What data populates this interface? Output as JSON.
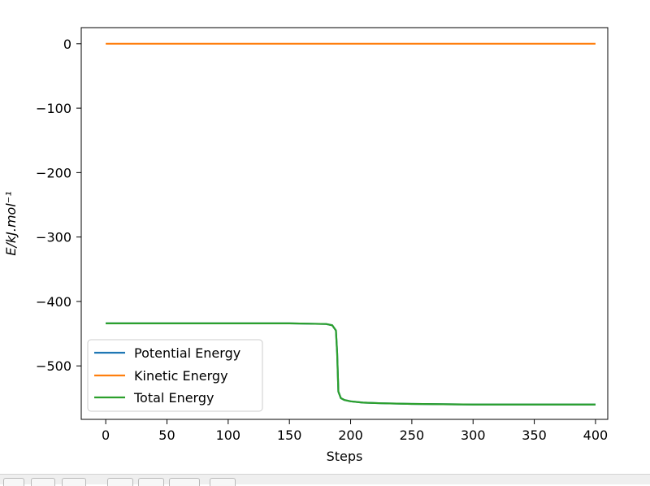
{
  "chart_data": {
    "type": "line",
    "title": "",
    "xlabel": "Steps",
    "ylabel": "E/kJ.mol⁻¹",
    "xlim": [
      -20,
      410
    ],
    "ylim": [
      -583,
      25
    ],
    "x_ticks": [
      0,
      50,
      100,
      150,
      200,
      250,
      300,
      350,
      400
    ],
    "y_ticks": [
      0,
      -100,
      -200,
      -300,
      -400,
      -500
    ],
    "x_tick_labels": [
      "0",
      "50",
      "100",
      "150",
      "200",
      "250",
      "300",
      "350",
      "400"
    ],
    "y_tick_labels": [
      "0",
      "−100",
      "−200",
      "−300",
      "−400",
      "−500"
    ],
    "grid": false,
    "legend_position": "lower-left",
    "series": [
      {
        "name": "Potential Energy",
        "color": "#1f77b4",
        "x": [
          0,
          100,
          150,
          180,
          185,
          188,
          189,
          190,
          192,
          195,
          200,
          210,
          225,
          250,
          300,
          350,
          400
        ],
        "y": [
          -434,
          -434,
          -434,
          -435,
          -437,
          -445,
          -480,
          -540,
          -550,
          -553,
          -555,
          -557,
          -558,
          -559,
          -560,
          -560,
          -560
        ]
      },
      {
        "name": "Kinetic Energy",
        "color": "#ff7f0e",
        "x": [
          0,
          400
        ],
        "y": [
          0,
          0
        ]
      },
      {
        "name": "Total Energy",
        "color": "#2ca02c",
        "x": [
          0,
          100,
          150,
          180,
          185,
          188,
          189,
          190,
          192,
          195,
          200,
          210,
          225,
          250,
          300,
          350,
          400
        ],
        "y": [
          -434,
          -434,
          -434,
          -435,
          -437,
          -445,
          -480,
          -540,
          -550,
          -553,
          -555,
          -557,
          -558,
          -559,
          -560,
          -560,
          -560
        ]
      }
    ]
  }
}
